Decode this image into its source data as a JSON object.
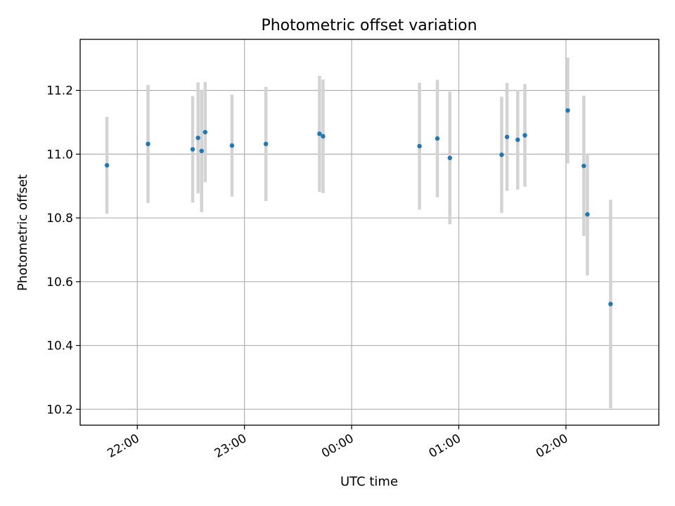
{
  "chart_data": {
    "type": "scatter",
    "title": "Photometric offset variation",
    "xlabel": "UTC time",
    "ylabel": "Photometric offset",
    "xlim": [
      "21:28",
      "02:52"
    ],
    "ylim": [
      10.15,
      11.36
    ],
    "x_ticks": [
      "22:00",
      "23:00",
      "00:00",
      "01:00",
      "02:00"
    ],
    "y_ticks": [
      10.2,
      10.4,
      10.6,
      10.8,
      11.0,
      11.2
    ],
    "y_tick_labels": [
      "10.2",
      "10.4",
      "10.6",
      "10.8",
      "11.0",
      "11.2"
    ],
    "grid": true,
    "marker_color": "#1f77b4",
    "errorbar_color": "#d3d3d3",
    "series": [
      {
        "points": [
          {
            "x": "21:43",
            "y": 10.965,
            "err": 0.152
          },
          {
            "x": "22:06",
            "y": 11.032,
            "err": 0.185
          },
          {
            "x": "22:31",
            "y": 11.015,
            "err": 0.167
          },
          {
            "x": "22:34",
            "y": 11.051,
            "err": 0.174
          },
          {
            "x": "22:36",
            "y": 11.01,
            "err": 0.192
          },
          {
            "x": "22:38",
            "y": 11.069,
            "err": 0.157
          },
          {
            "x": "22:53",
            "y": 11.027,
            "err": 0.16
          },
          {
            "x": "23:12",
            "y": 11.032,
            "err": 0.179
          },
          {
            "x": "23:42",
            "y": 11.064,
            "err": 0.182
          },
          {
            "x": "23:44",
            "y": 11.056,
            "err": 0.178
          },
          {
            "x": "00:38",
            "y": 11.025,
            "err": 0.199
          },
          {
            "x": "00:48",
            "y": 11.049,
            "err": 0.184
          },
          {
            "x": "00:55",
            "y": 10.988,
            "err": 0.208
          },
          {
            "x": "01:24",
            "y": 10.998,
            "err": 0.182
          },
          {
            "x": "01:27",
            "y": 11.054,
            "err": 0.169
          },
          {
            "x": "01:33",
            "y": 11.045,
            "err": 0.156
          },
          {
            "x": "01:37",
            "y": 11.059,
            "err": 0.161
          },
          {
            "x": "02:01",
            "y": 11.137,
            "err": 0.166
          },
          {
            "x": "02:10",
            "y": 10.963,
            "err": 0.22
          },
          {
            "x": "02:12",
            "y": 10.811,
            "err": 0.191
          },
          {
            "x": "02:25",
            "y": 10.53,
            "err": 0.327
          }
        ]
      }
    ]
  }
}
